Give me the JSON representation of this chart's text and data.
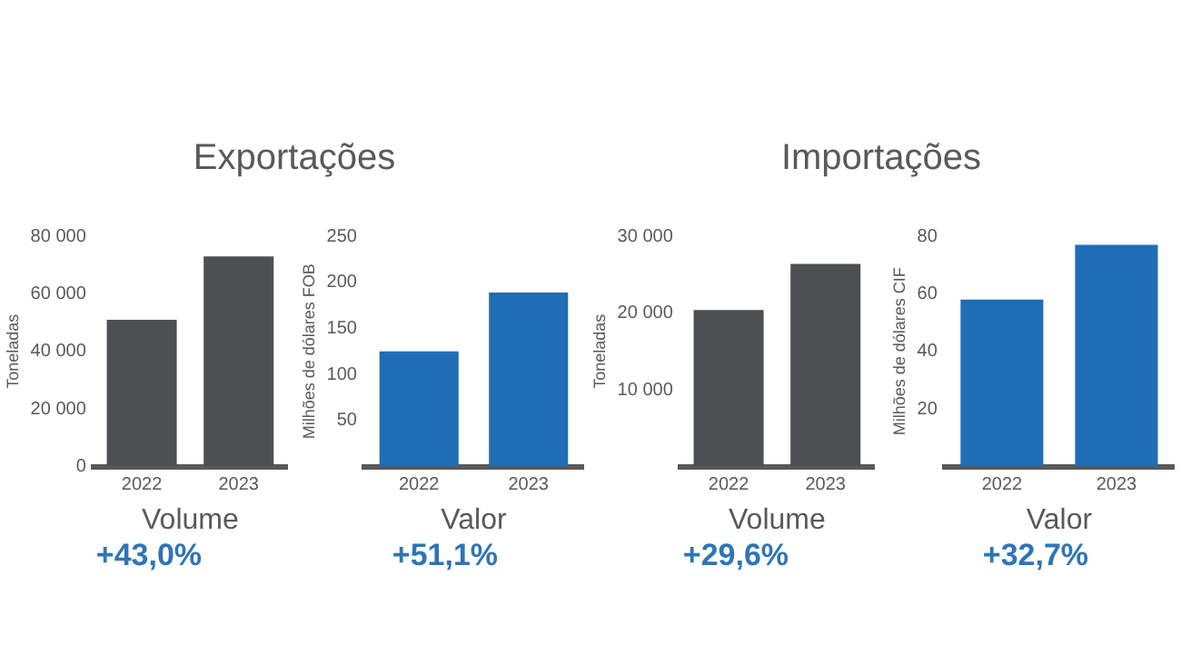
{
  "chart_data": [
    {
      "type": "bar",
      "title": "Exportações",
      "categories": [
        "2022",
        "2023"
      ],
      "xlabel": "Volume",
      "ylabel": "Toneladas",
      "values": [
        51000,
        73000
      ],
      "color": "#4d4f53",
      "ylim": [
        0,
        80000
      ],
      "yticks": [
        {
          "value": 0,
          "label": "0"
        },
        {
          "value": 20000,
          "label": "20 000"
        },
        {
          "value": 40000,
          "label": "40 000"
        },
        {
          "value": 60000,
          "label": "60 000"
        },
        {
          "value": 80000,
          "label": "80 000"
        }
      ],
      "annotations": [
        "+43,0%"
      ]
    },
    {
      "type": "bar",
      "categories": [
        "2022",
        "2023"
      ],
      "xlabel": "Valor",
      "ylabel": "Milhões de dólares FOB",
      "values": [
        125,
        189
      ],
      "color": "#1f6db5",
      "ylim": [
        0,
        250
      ],
      "yticks": [
        50,
        100,
        150,
        200,
        250
      ],
      "annotations": [
        "+51,1%"
      ]
    },
    {
      "type": "bar",
      "title": "Importações",
      "categories": [
        "2022",
        "2023"
      ],
      "xlabel": "Volume",
      "ylabel": "Toneladas",
      "values": [
        20400,
        26400
      ],
      "color": "#4d4f53",
      "ylim": [
        0,
        30000
      ],
      "yticks": [
        {
          "value": 10000,
          "label": "10 000"
        },
        {
          "value": 20000,
          "label": "20 000"
        },
        {
          "value": 30000,
          "label": "30 000"
        }
      ],
      "annotations": [
        "+29,6%"
      ]
    },
    {
      "type": "bar",
      "categories": [
        "2022",
        "2023"
      ],
      "xlabel": "Valor",
      "ylabel": "Milhões de dólares CIF",
      "values": [
        58,
        77
      ],
      "color": "#1f6db5",
      "ylim": [
        0,
        80
      ],
      "yticks": [
        20,
        40,
        60,
        80
      ],
      "annotations": [
        "+32,7%"
      ]
    }
  ]
}
